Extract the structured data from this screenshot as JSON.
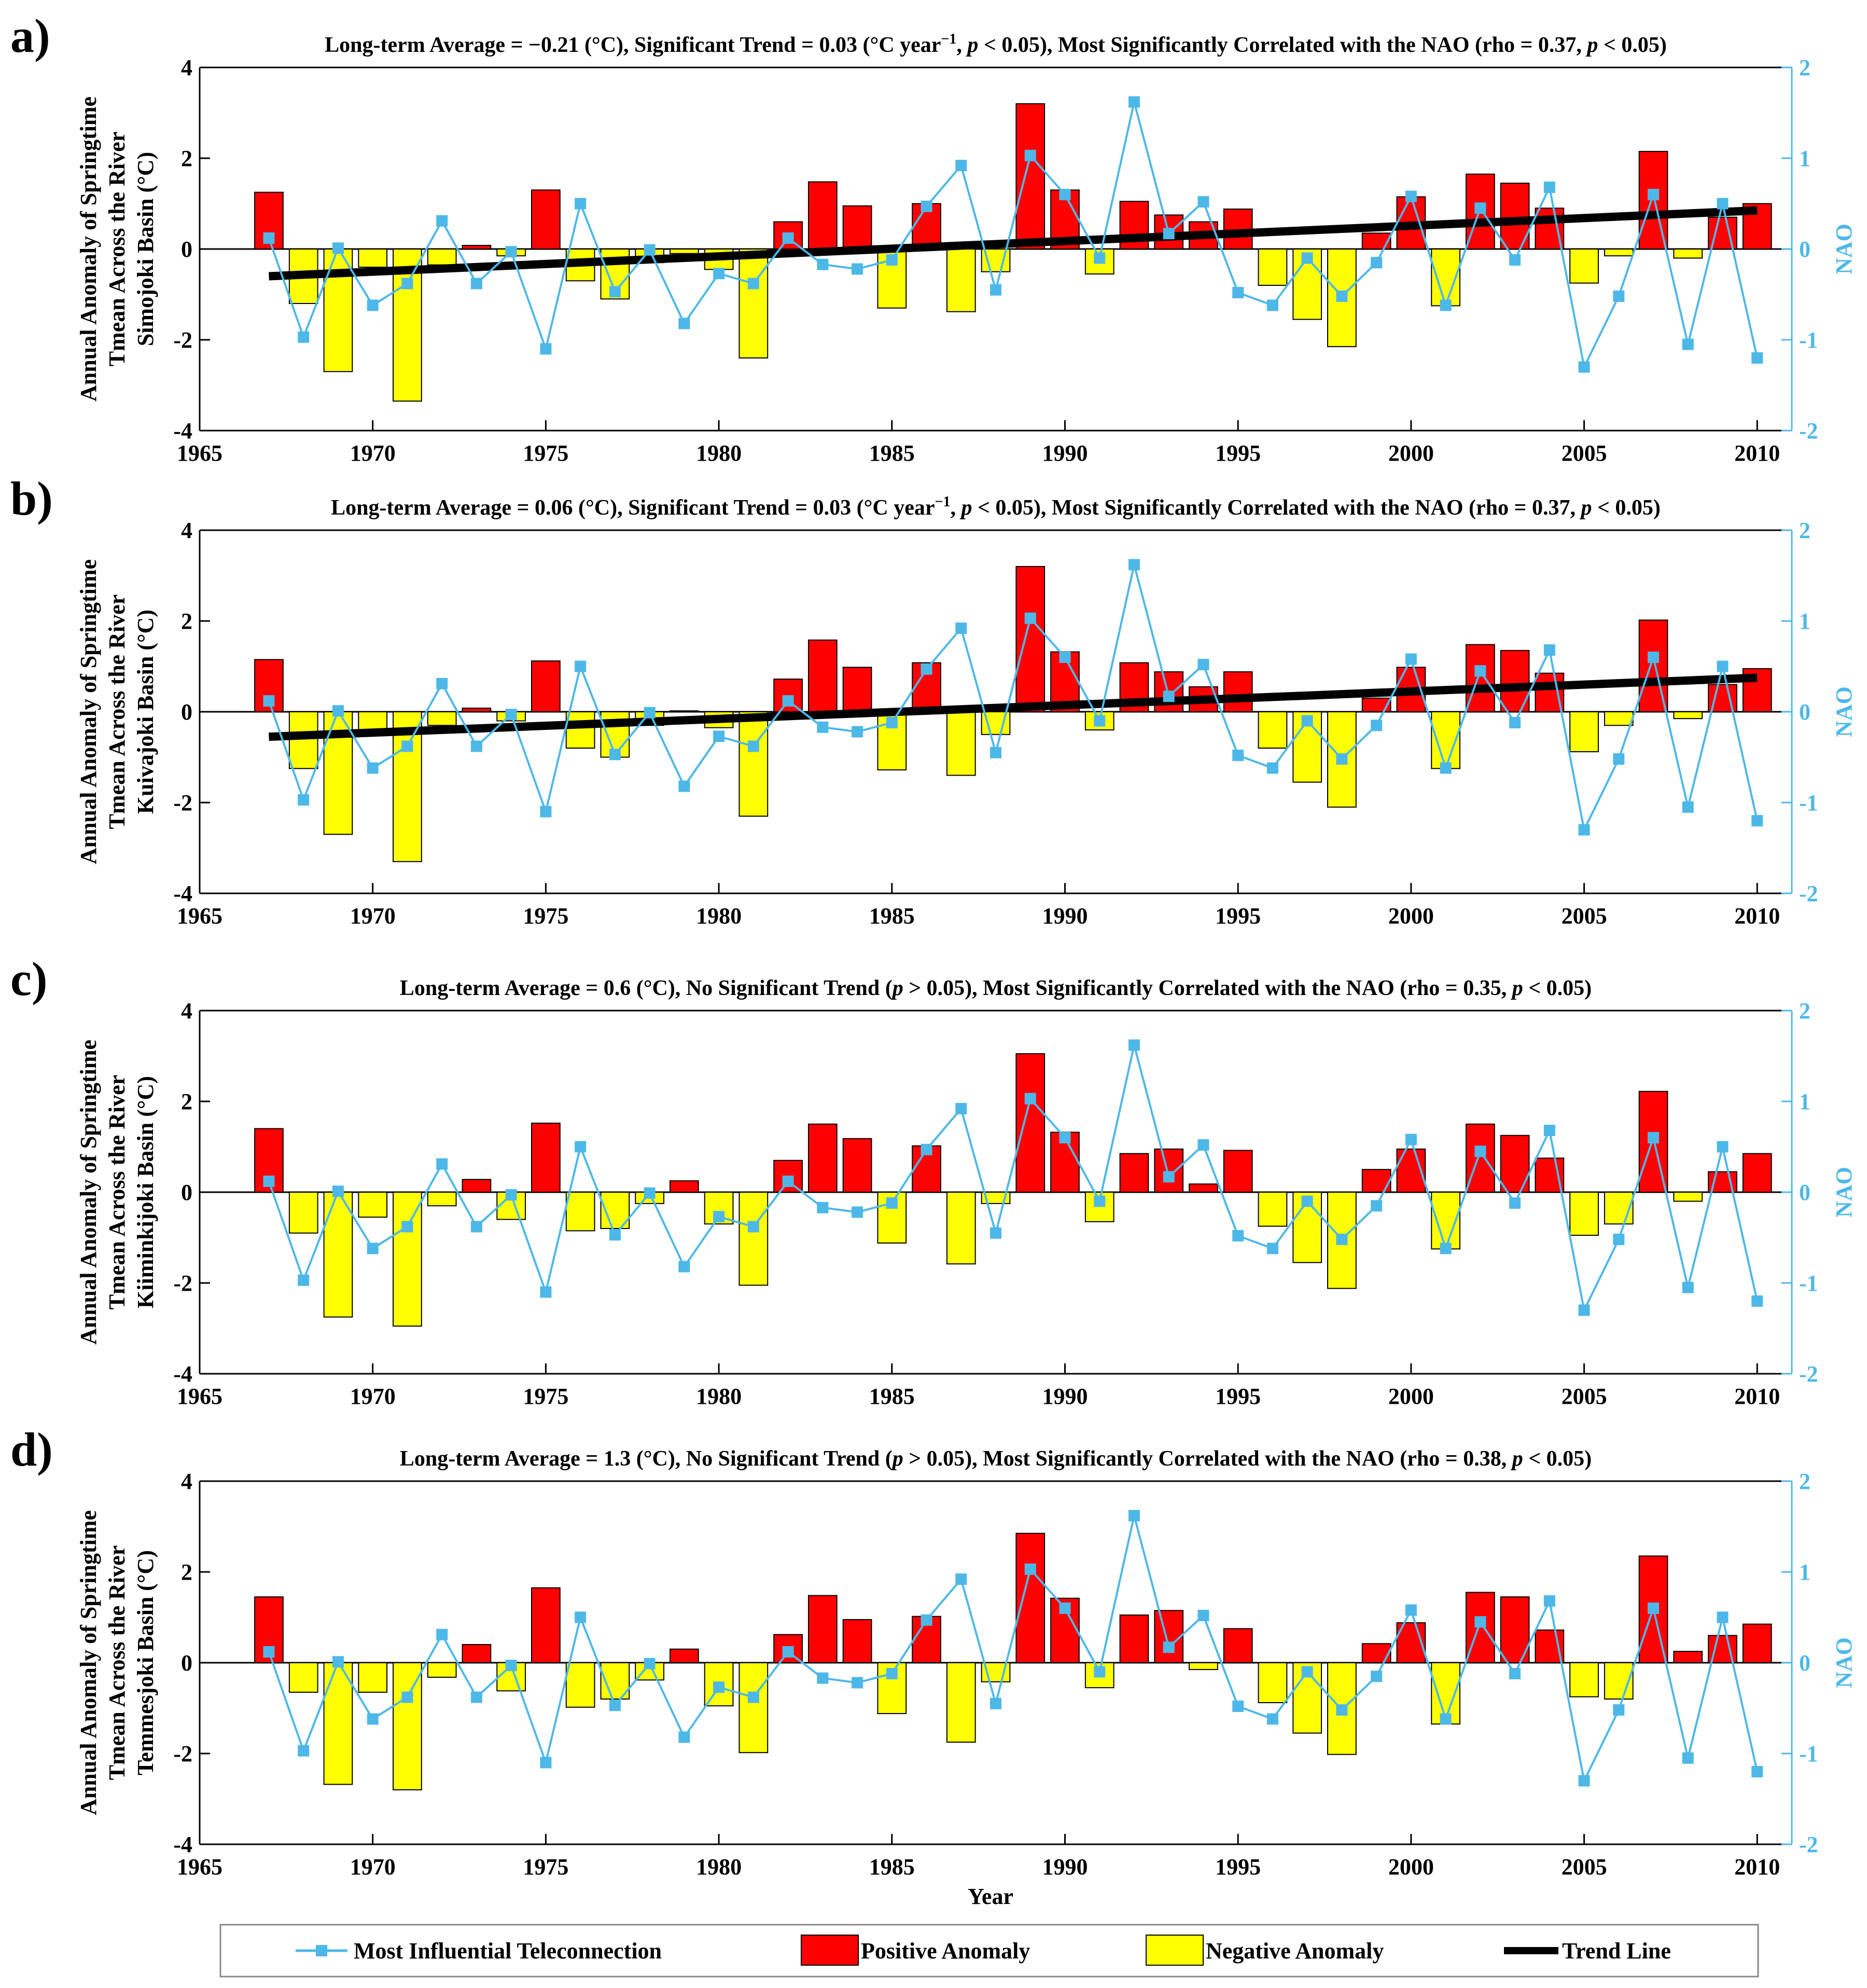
{
  "figure": {
    "xlabel": "Year",
    "left_ylabel_line1": "Annual Anomaly of Springtime",
    "left_ylabel_line2": "Tmean Across the River",
    "right_ylabel": "NAO",
    "legend": {
      "teleconnection": "Most Influential Teleconnection",
      "positive": "Positive Anomaly",
      "negative": "Negative Anomaly",
      "trend": "Trend Line"
    },
    "colors": {
      "positive": "#ff0000",
      "negative": "#ffff00",
      "nao": "#4db8e8",
      "trend": "#000000",
      "axis_right": "#4db8e8"
    }
  },
  "chart_data": [
    {
      "type": "bar",
      "panel": "a)",
      "title_parts": [
        "Long-term Average = −0.21 (°C), Significant Trend = 0.03 (°C year",
        "−1",
        ", ",
        "p",
        " < 0.05), Most Significantly Correlated with the NAO (rho = 0.37, ",
        "p",
        " < 0.05)"
      ],
      "ylabel_basin": "Simojoki Basin (°C)",
      "xlim": [
        1965,
        2011
      ],
      "ylim": [
        -4,
        4
      ],
      "y2lim": [
        -2,
        2
      ],
      "xticks": [
        1965,
        1970,
        1975,
        1980,
        1985,
        1990,
        1995,
        2000,
        2005,
        2010
      ],
      "yticks": [
        -4,
        -2,
        0,
        2,
        4
      ],
      "y2ticks": [
        -2,
        -1,
        0,
        1,
        2
      ],
      "years": [
        1967,
        1968,
        1969,
        1970,
        1971,
        1972,
        1973,
        1974,
        1975,
        1976,
        1977,
        1978,
        1979,
        1980,
        1981,
        1982,
        1983,
        1984,
        1985,
        1986,
        1987,
        1988,
        1989,
        1990,
        1991,
        1992,
        1993,
        1994,
        1995,
        1996,
        1997,
        1998,
        1999,
        2000,
        2001,
        2002,
        2003,
        2004,
        2005,
        2006,
        2007,
        2008,
        2009,
        2010
      ],
      "anomaly": [
        1.25,
        -1.2,
        -2.7,
        -0.4,
        -3.35,
        -0.35,
        0.08,
        -0.15,
        1.3,
        -0.7,
        -1.1,
        -0.3,
        -0.1,
        -0.45,
        -2.4,
        0.6,
        1.48,
        0.95,
        -1.3,
        1.0,
        -1.38,
        -0.5,
        3.2,
        1.3,
        -0.55,
        1.05,
        0.75,
        0.6,
        0.88,
        -0.8,
        -1.55,
        -2.15,
        0.35,
        1.15,
        -1.25,
        1.65,
        1.45,
        0.9,
        -0.75,
        -0.15,
        2.15,
        -0.2,
        0.7,
        1.0
      ],
      "nao": [
        0.12,
        -0.97,
        0.01,
        -0.62,
        -0.38,
        0.31,
        -0.38,
        -0.03,
        -1.1,
        0.5,
        -0.47,
        -0.01,
        -0.82,
        -0.27,
        -0.38,
        0.12,
        -0.17,
        -0.22,
        -0.12,
        0.47,
        0.92,
        -0.45,
        1.03,
        0.6,
        -0.1,
        1.62,
        0.17,
        0.52,
        -0.48,
        -0.62,
        -0.1,
        -0.52,
        -0.15,
        0.58,
        -0.62,
        0.45,
        -0.12,
        0.68,
        -1.3,
        -0.52,
        0.6,
        -1.05,
        0.5,
        -1.2
      ],
      "trend": {
        "x": [
          1967,
          2010
        ],
        "y": [
          -0.6,
          0.85
        ]
      }
    },
    {
      "type": "bar",
      "panel": "b)",
      "title_parts": [
        "Long-term Average = 0.06 (°C), Significant Trend = 0.03 (°C year",
        "−1",
        ", ",
        "p",
        " < 0.05), Most Significantly Correlated with the NAO (rho = 0.37, ",
        "p",
        " < 0.05)"
      ],
      "ylabel_basin": "Kuivajoki Basin (°C)",
      "xlim": [
        1965,
        2011
      ],
      "ylim": [
        -4,
        4
      ],
      "y2lim": [
        -2,
        2
      ],
      "xticks": [
        1965,
        1970,
        1975,
        1980,
        1985,
        1990,
        1995,
        2000,
        2005,
        2010
      ],
      "yticks": [
        -4,
        -2,
        0,
        2,
        4
      ],
      "y2ticks": [
        -2,
        -1,
        0,
        1,
        2
      ],
      "years": [
        1967,
        1968,
        1969,
        1970,
        1971,
        1972,
        1973,
        1974,
        1975,
        1976,
        1977,
        1978,
        1979,
        1980,
        1981,
        1982,
        1983,
        1984,
        1985,
        1986,
        1987,
        1988,
        1989,
        1990,
        1991,
        1992,
        1993,
        1994,
        1995,
        1996,
        1997,
        1998,
        1999,
        2000,
        2001,
        2002,
        2003,
        2004,
        2005,
        2006,
        2007,
        2008,
        2009,
        2010
      ],
      "anomaly": [
        1.15,
        -1.25,
        -2.7,
        -0.4,
        -3.3,
        -0.3,
        0.08,
        -0.2,
        1.12,
        -0.8,
        -1.0,
        -0.3,
        0.02,
        -0.35,
        -2.3,
        0.72,
        1.58,
        0.98,
        -1.28,
        1.08,
        -1.4,
        -0.5,
        3.2,
        1.32,
        -0.4,
        1.08,
        0.88,
        0.55,
        0.88,
        -0.8,
        -1.55,
        -2.1,
        0.3,
        0.98,
        -1.25,
        1.48,
        1.35,
        0.85,
        -0.88,
        -0.3,
        2.02,
        -0.15,
        0.6,
        0.95
      ],
      "nao": [
        0.12,
        -0.97,
        0.01,
        -0.62,
        -0.38,
        0.31,
        -0.38,
        -0.03,
        -1.1,
        0.5,
        -0.47,
        -0.01,
        -0.82,
        -0.27,
        -0.38,
        0.12,
        -0.17,
        -0.22,
        -0.12,
        0.47,
        0.92,
        -0.45,
        1.03,
        0.6,
        -0.1,
        1.62,
        0.17,
        0.52,
        -0.48,
        -0.62,
        -0.1,
        -0.52,
        -0.15,
        0.58,
        -0.62,
        0.45,
        -0.12,
        0.68,
        -1.3,
        -0.52,
        0.6,
        -1.05,
        0.5,
        -1.2
      ],
      "trend": {
        "x": [
          1967,
          2010
        ],
        "y": [
          -0.55,
          0.75
        ]
      }
    },
    {
      "type": "bar",
      "panel": "c)",
      "title_parts": [
        "Long-term Average = 0.6 (°C), No Significant Trend (",
        "p",
        " > 0.05), Most Significantly Correlated with the NAO (rho = 0.35, ",
        "p",
        " < 0.05)"
      ],
      "ylabel_basin": "Kiiminkijoki Basin (°C)",
      "xlim": [
        1965,
        2011
      ],
      "ylim": [
        -4,
        4
      ],
      "y2lim": [
        -2,
        2
      ],
      "xticks": [
        1965,
        1970,
        1975,
        1980,
        1985,
        1990,
        1995,
        2000,
        2005,
        2010
      ],
      "yticks": [
        -4,
        -2,
        0,
        2,
        4
      ],
      "y2ticks": [
        -2,
        -1,
        0,
        1,
        2
      ],
      "years": [
        1967,
        1968,
        1969,
        1970,
        1971,
        1972,
        1973,
        1974,
        1975,
        1976,
        1977,
        1978,
        1979,
        1980,
        1981,
        1982,
        1983,
        1984,
        1985,
        1986,
        1987,
        1988,
        1989,
        1990,
        1991,
        1992,
        1993,
        1994,
        1995,
        1996,
        1997,
        1998,
        1999,
        2000,
        2001,
        2002,
        2003,
        2004,
        2005,
        2006,
        2007,
        2008,
        2009,
        2010
      ],
      "anomaly": [
        1.4,
        -0.9,
        -2.75,
        -0.55,
        -2.95,
        -0.3,
        0.28,
        -0.6,
        1.52,
        -0.85,
        -0.8,
        -0.25,
        0.25,
        -0.7,
        -2.05,
        0.7,
        1.5,
        1.18,
        -1.12,
        1.02,
        -1.58,
        -0.25,
        3.05,
        1.32,
        -0.65,
        0.85,
        0.95,
        0.18,
        0.92,
        -0.75,
        -1.55,
        -2.12,
        0.5,
        0.95,
        -1.25,
        1.5,
        1.25,
        0.75,
        -0.95,
        -0.7,
        2.22,
        -0.2,
        0.45,
        0.85
      ],
      "nao": [
        0.12,
        -0.97,
        0.01,
        -0.62,
        -0.38,
        0.31,
        -0.38,
        -0.03,
        -1.1,
        0.5,
        -0.47,
        -0.01,
        -0.82,
        -0.27,
        -0.38,
        0.12,
        -0.17,
        -0.22,
        -0.12,
        0.47,
        0.92,
        -0.45,
        1.03,
        0.6,
        -0.1,
        1.62,
        0.17,
        0.52,
        -0.48,
        -0.62,
        -0.1,
        -0.52,
        -0.15,
        0.58,
        -0.62,
        0.45,
        -0.12,
        0.68,
        -1.3,
        -0.52,
        0.6,
        -1.05,
        0.5,
        -1.2
      ],
      "trend": null
    },
    {
      "type": "bar",
      "panel": "d)",
      "title_parts": [
        "Long-term Average = 1.3 (°C), No Significant Trend (",
        "p",
        " > 0.05), Most Significantly Correlated with the NAO (rho = 0.38, ",
        "p",
        " < 0.05)"
      ],
      "ylabel_basin": "Temmesjoki Basin (°C)",
      "xlim": [
        1965,
        2011
      ],
      "ylim": [
        -4,
        4
      ],
      "y2lim": [
        -2,
        2
      ],
      "xticks": [
        1965,
        1970,
        1975,
        1980,
        1985,
        1990,
        1995,
        2000,
        2005,
        2010
      ],
      "yticks": [
        -4,
        -2,
        0,
        2,
        4
      ],
      "y2ticks": [
        -2,
        -1,
        0,
        1,
        2
      ],
      "years": [
        1967,
        1968,
        1969,
        1970,
        1971,
        1972,
        1973,
        1974,
        1975,
        1976,
        1977,
        1978,
        1979,
        1980,
        1981,
        1982,
        1983,
        1984,
        1985,
        1986,
        1987,
        1988,
        1989,
        1990,
        1991,
        1992,
        1993,
        1994,
        1995,
        1996,
        1997,
        1998,
        1999,
        2000,
        2001,
        2002,
        2003,
        2004,
        2005,
        2006,
        2007,
        2008,
        2009,
        2010
      ],
      "anomaly": [
        1.45,
        -0.65,
        -2.68,
        -0.65,
        -2.8,
        -0.32,
        0.4,
        -0.62,
        1.65,
        -0.98,
        -0.8,
        -0.38,
        0.3,
        -0.95,
        -1.98,
        0.62,
        1.48,
        0.95,
        -1.12,
        1.02,
        -1.75,
        -0.42,
        2.85,
        1.42,
        -0.55,
        1.05,
        1.15,
        -0.15,
        0.75,
        -0.88,
        -1.55,
        -2.02,
        0.42,
        0.88,
        -1.35,
        1.55,
        1.45,
        0.72,
        -0.75,
        -0.8,
        2.35,
        0.25,
        0.6,
        0.85
      ],
      "nao": [
        0.12,
        -0.97,
        0.01,
        -0.62,
        -0.38,
        0.31,
        -0.38,
        -0.03,
        -1.1,
        0.5,
        -0.47,
        -0.01,
        -0.82,
        -0.27,
        -0.38,
        0.12,
        -0.17,
        -0.22,
        -0.12,
        0.47,
        0.92,
        -0.45,
        1.03,
        0.6,
        -0.1,
        1.62,
        0.17,
        0.52,
        -0.48,
        -0.62,
        -0.1,
        -0.52,
        -0.15,
        0.58,
        -0.62,
        0.45,
        -0.12,
        0.68,
        -1.3,
        -0.52,
        0.6,
        -1.05,
        0.5,
        -1.2
      ],
      "trend": null
    }
  ]
}
